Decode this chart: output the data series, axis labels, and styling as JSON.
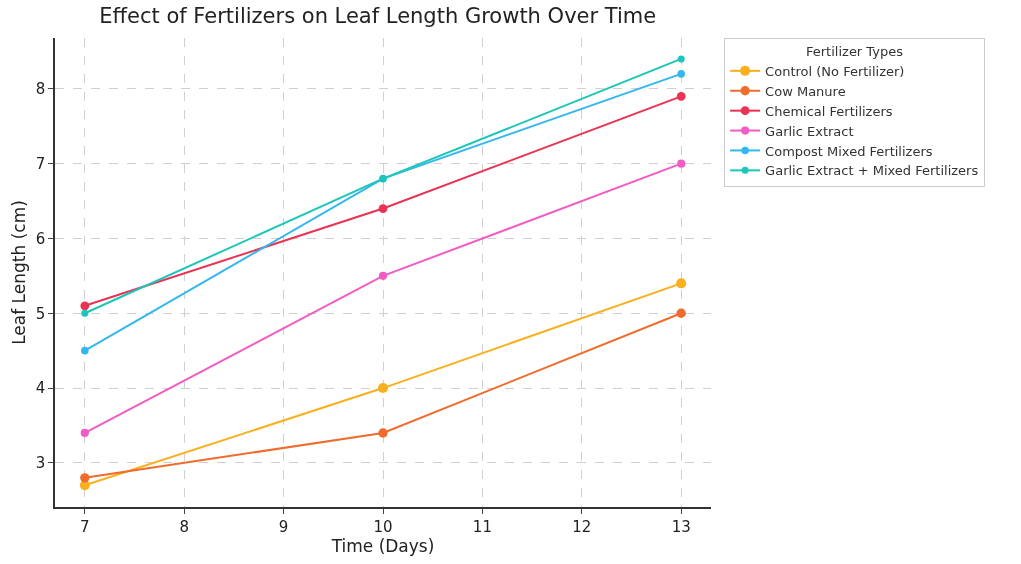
{
  "chart_data": {
    "type": "line",
    "title": "Effect of Fertilizers on Leaf Length Growth Over Time",
    "xlabel": "Time (Days)",
    "ylabel": "Leaf Length (cm)",
    "legend_title": "Fertilizer Types",
    "x": [
      7,
      10,
      13
    ],
    "series": [
      {
        "name": "Control (No Fertilizer)",
        "color": "#f9b01e",
        "values": [
          2.7,
          4.0,
          5.4
        ]
      },
      {
        "name": "Cow Manure",
        "color": "#ef6c2c",
        "values": [
          2.8,
          3.4,
          5.0
        ]
      },
      {
        "name": "Chemical Fertilizers",
        "color": "#ea3253",
        "values": [
          5.1,
          6.4,
          7.9
        ]
      },
      {
        "name": "Garlic Extract",
        "color": "#f25cc4",
        "values": [
          3.4,
          5.5,
          7.0
        ]
      },
      {
        "name": "Compost Mixed Fertilizers",
        "color": "#33b7ee",
        "values": [
          4.5,
          6.8,
          8.2
        ]
      },
      {
        "name": "Garlic Extract + Mixed Fertilizers",
        "color": "#1cc6b8",
        "values": [
          5.0,
          6.8,
          8.4
        ]
      }
    ],
    "xlim": [
      6.7,
      13.3
    ],
    "xticks": [
      7,
      8,
      9,
      10,
      11,
      12,
      13
    ],
    "ylim": [
      2.41,
      8.68
    ],
    "yticks": [
      3,
      4,
      5,
      6,
      7,
      8
    ],
    "grid": true,
    "legend": "right",
    "marker": "circle",
    "line_style": "solid"
  }
}
